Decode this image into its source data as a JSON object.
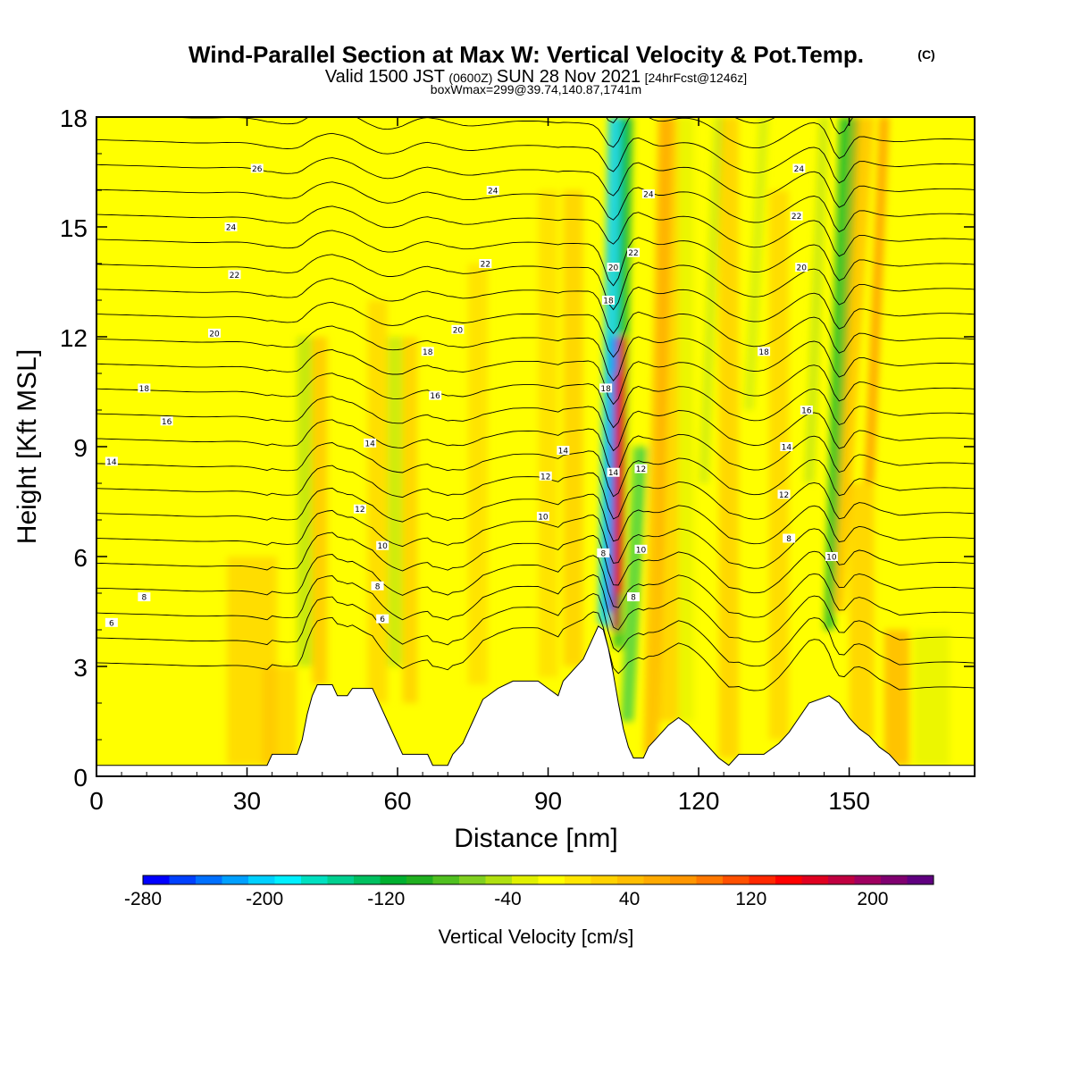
{
  "title": {
    "main": "Wind-Parallel Section at Max W: Vertical Velocity & Pot.Temp.",
    "copyright": "(C)",
    "valid_prefix": "Valid 1500 JST",
    "valid_z": "(0600Z)",
    "valid_date": "SUN 28 Nov 2021",
    "forecast": "[24hrFcst@1246z]",
    "boxwmax": "boxWmax=299@39.74,140.87,1741m"
  },
  "colors": {
    "terrain": "#ffffff",
    "contour": "#000000",
    "colorbar": [
      "#0000ff",
      "#0040ff",
      "#0070ff",
      "#00a0ff",
      "#00d0ff",
      "#00f0ff",
      "#00e0c0",
      "#00d090",
      "#00c060",
      "#00b030",
      "#20b020",
      "#50c020",
      "#80d020",
      "#b0e010",
      "#e0f000",
      "#ffff00",
      "#ffe600",
      "#ffd200",
      "#ffbe00",
      "#ffaa00",
      "#ff9600",
      "#ff7800",
      "#ff5000",
      "#ff2800",
      "#ff0000",
      "#e00020",
      "#c00040",
      "#a00060",
      "#800070",
      "#600080"
    ]
  },
  "chart_data": {
    "type": "heatmap",
    "xlabel": "Distance [nm]",
    "ylabel": "Height [Kft MSL]",
    "xlim": [
      0,
      175
    ],
    "ylim": [
      0,
      18
    ],
    "xticks": [
      0,
      30,
      60,
      90,
      120,
      150
    ],
    "yticks": [
      0,
      3,
      6,
      9,
      12,
      15,
      18
    ],
    "colorbar": {
      "label": "Vertical Velocity [cm/s]",
      "range": [
        -280,
        240
      ],
      "step": 20,
      "tick_values": [
        -280,
        -200,
        -120,
        -40,
        40,
        120,
        200
      ]
    },
    "terrain_profile": [
      [
        0,
        0.3
      ],
      [
        34,
        0.3
      ],
      [
        35,
        0.6
      ],
      [
        40,
        0.6
      ],
      [
        41,
        1.0
      ],
      [
        42,
        1.7
      ],
      [
        43,
        2.2
      ],
      [
        44,
        2.5
      ],
      [
        47,
        2.5
      ],
      [
        48,
        2.2
      ],
      [
        50,
        2.2
      ],
      [
        51,
        2.4
      ],
      [
        55,
        2.4
      ],
      [
        56,
        2.1
      ],
      [
        57,
        1.8
      ],
      [
        58,
        1.5
      ],
      [
        59,
        1.2
      ],
      [
        60,
        0.9
      ],
      [
        61,
        0.6
      ],
      [
        66,
        0.6
      ],
      [
        67,
        0.3
      ],
      [
        70,
        0.3
      ],
      [
        71,
        0.6
      ],
      [
        73,
        0.9
      ],
      [
        74,
        1.2
      ],
      [
        75,
        1.5
      ],
      [
        76,
        1.8
      ],
      [
        77,
        2.1
      ],
      [
        80,
        2.4
      ],
      [
        83,
        2.6
      ],
      [
        88,
        2.6
      ],
      [
        90,
        2.4
      ],
      [
        92,
        2.2
      ],
      [
        93,
        2.6
      ],
      [
        95,
        2.9
      ],
      [
        97,
        3.2
      ],
      [
        99,
        3.8
      ],
      [
        100,
        4.1
      ],
      [
        101,
        4.0
      ],
      [
        102,
        3.5
      ],
      [
        103,
        2.8
      ],
      [
        104,
        2.0
      ],
      [
        105,
        1.3
      ],
      [
        106,
        0.8
      ],
      [
        107,
        0.5
      ],
      [
        109,
        0.5
      ],
      [
        110,
        0.8
      ],
      [
        112,
        1.1
      ],
      [
        114,
        1.4
      ],
      [
        116,
        1.6
      ],
      [
        118,
        1.4
      ],
      [
        120,
        1.1
      ],
      [
        122,
        0.8
      ],
      [
        124,
        0.5
      ],
      [
        126,
        0.3
      ],
      [
        128,
        0.6
      ],
      [
        133,
        0.6
      ],
      [
        136,
        0.9
      ],
      [
        138,
        1.2
      ],
      [
        140,
        1.6
      ],
      [
        142,
        2.0
      ],
      [
        146,
        2.2
      ],
      [
        148,
        2.0
      ],
      [
        150,
        1.6
      ],
      [
        152,
        1.3
      ],
      [
        154,
        1.1
      ],
      [
        156,
        0.8
      ],
      [
        158,
        0.6
      ],
      [
        160,
        0.3
      ],
      [
        175,
        0.3
      ]
    ],
    "theta_contour_labels": [
      {
        "value": "26",
        "x": 32.0,
        "y": 16.6
      },
      {
        "value": "24",
        "x": 26.8,
        "y": 15.0
      },
      {
        "value": "22",
        "x": 27.5,
        "y": 13.7
      },
      {
        "value": "20",
        "x": 23.5,
        "y": 12.1
      },
      {
        "value": "18",
        "x": 9.5,
        "y": 10.6
      },
      {
        "value": "16",
        "x": 14.0,
        "y": 9.7
      },
      {
        "value": "14",
        "x": 3.0,
        "y": 8.6
      },
      {
        "value": "8",
        "x": 9.5,
        "y": 4.9
      },
      {
        "value": "6",
        "x": 3.0,
        "y": 4.2
      },
      {
        "value": "24",
        "x": 79.0,
        "y": 16.0
      },
      {
        "value": "22",
        "x": 77.5,
        "y": 14.0
      },
      {
        "value": "20",
        "x": 72.0,
        "y": 12.2
      },
      {
        "value": "18",
        "x": 66.0,
        "y": 11.6
      },
      {
        "value": "16",
        "x": 67.5,
        "y": 10.4
      },
      {
        "value": "14",
        "x": 54.5,
        "y": 9.1
      },
      {
        "value": "12",
        "x": 52.5,
        "y": 7.3
      },
      {
        "value": "10",
        "x": 57.0,
        "y": 6.3
      },
      {
        "value": "8",
        "x": 56.0,
        "y": 5.2
      },
      {
        "value": "6",
        "x": 57.0,
        "y": 4.3
      },
      {
        "value": "14",
        "x": 93.0,
        "y": 8.9
      },
      {
        "value": "12",
        "x": 89.5,
        "y": 8.2
      },
      {
        "value": "10",
        "x": 89.0,
        "y": 7.1
      },
      {
        "value": "8",
        "x": 101.0,
        "y": 6.1
      },
      {
        "value": "20",
        "x": 103.0,
        "y": 13.9
      },
      {
        "value": "18",
        "x": 102.0,
        "y": 13.0
      },
      {
        "value": "18",
        "x": 101.5,
        "y": 10.6
      },
      {
        "value": "14",
        "x": 103.0,
        "y": 8.3
      },
      {
        "value": "22",
        "x": 107.0,
        "y": 14.3
      },
      {
        "value": "24",
        "x": 110.0,
        "y": 15.9
      },
      {
        "value": "12",
        "x": 108.5,
        "y": 8.4
      },
      {
        "value": "10",
        "x": 108.5,
        "y": 6.2
      },
      {
        "value": "8",
        "x": 107.0,
        "y": 4.9
      },
      {
        "value": "24",
        "x": 140.0,
        "y": 16.6
      },
      {
        "value": "22",
        "x": 139.5,
        "y": 15.3
      },
      {
        "value": "20",
        "x": 140.5,
        "y": 13.9
      },
      {
        "value": "18",
        "x": 133.0,
        "y": 11.6
      },
      {
        "value": "16",
        "x": 141.5,
        "y": 10.0
      },
      {
        "value": "14",
        "x": 137.5,
        "y": 9.0
      },
      {
        "value": "12",
        "x": 137.0,
        "y": 7.7
      },
      {
        "value": "8",
        "x": 138.0,
        "y": 6.5
      },
      {
        "value": "10",
        "x": 146.5,
        "y": 6.0
      }
    ]
  }
}
